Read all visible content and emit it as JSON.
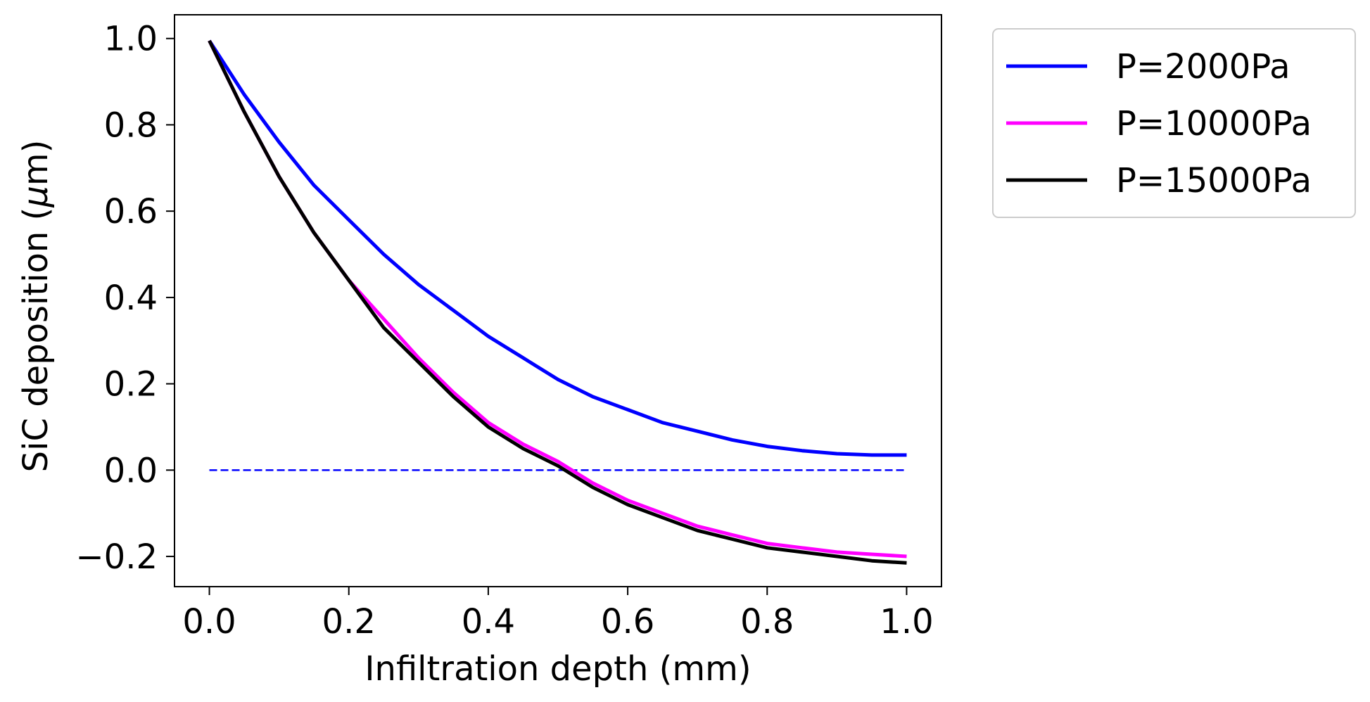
{
  "chart_data": {
    "type": "line",
    "title": "",
    "xlabel": "Infiltration depth (mm)",
    "ylabel": "SiC deposition (",
    "ylabel_symbol": "μ",
    "ylabel_unit": "m)",
    "xlim": [
      -0.05,
      1.05
    ],
    "ylim": [
      -0.27,
      1.055
    ],
    "xticks": [
      0.0,
      0.2,
      0.4,
      0.6,
      0.8,
      1.0
    ],
    "xtick_labels": [
      "0.0",
      "0.2",
      "0.4",
      "0.6",
      "0.8",
      "1.0"
    ],
    "yticks": [
      1.0,
      0.8,
      0.6,
      0.4,
      0.2,
      0.0,
      -0.2
    ],
    "ytick_labels": [
      "1.0",
      "0.8",
      "0.6",
      "0.4",
      "0.2",
      "0.0",
      "−0.2"
    ],
    "grid": false,
    "legend_position": "outside upper right",
    "series": [
      {
        "name": "P=2000Pa",
        "color": "#0000ff",
        "x": [
          0.0,
          0.05,
          0.1,
          0.15,
          0.2,
          0.25,
          0.3,
          0.35,
          0.4,
          0.45,
          0.5,
          0.55,
          0.6,
          0.65,
          0.7,
          0.75,
          0.8,
          0.85,
          0.9,
          0.95,
          1.0
        ],
        "y": [
          0.995,
          0.87,
          0.76,
          0.66,
          0.58,
          0.5,
          0.43,
          0.37,
          0.31,
          0.26,
          0.21,
          0.17,
          0.14,
          0.11,
          0.09,
          0.07,
          0.055,
          0.045,
          0.038,
          0.035,
          0.035
        ]
      },
      {
        "name": "P=10000Pa",
        "color": "#ff00ff",
        "x": [
          0.0,
          0.05,
          0.1,
          0.15,
          0.2,
          0.25,
          0.3,
          0.35,
          0.4,
          0.45,
          0.5,
          0.55,
          0.6,
          0.65,
          0.7,
          0.75,
          0.8,
          0.85,
          0.9,
          0.95,
          1.0
        ],
        "y": [
          0.995,
          0.83,
          0.68,
          0.55,
          0.44,
          0.35,
          0.26,
          0.18,
          0.11,
          0.06,
          0.02,
          -0.03,
          -0.07,
          -0.1,
          -0.13,
          -0.15,
          -0.17,
          -0.18,
          -0.19,
          -0.195,
          -0.2
        ]
      },
      {
        "name": "P=15000Pa",
        "color": "#000000",
        "x": [
          0.0,
          0.05,
          0.1,
          0.15,
          0.2,
          0.25,
          0.3,
          0.35,
          0.4,
          0.45,
          0.5,
          0.55,
          0.6,
          0.65,
          0.7,
          0.75,
          0.8,
          0.85,
          0.9,
          0.95,
          1.0
        ],
        "y": [
          0.995,
          0.83,
          0.68,
          0.55,
          0.44,
          0.33,
          0.25,
          0.17,
          0.1,
          0.05,
          0.01,
          -0.04,
          -0.08,
          -0.11,
          -0.14,
          -0.16,
          -0.18,
          -0.19,
          -0.2,
          -0.21,
          -0.215
        ]
      }
    ],
    "reference_line": {
      "style": "dashed",
      "color": "#0000ff",
      "x": [
        0.0,
        1.0
      ],
      "y": [
        0.0,
        0.0
      ]
    }
  }
}
